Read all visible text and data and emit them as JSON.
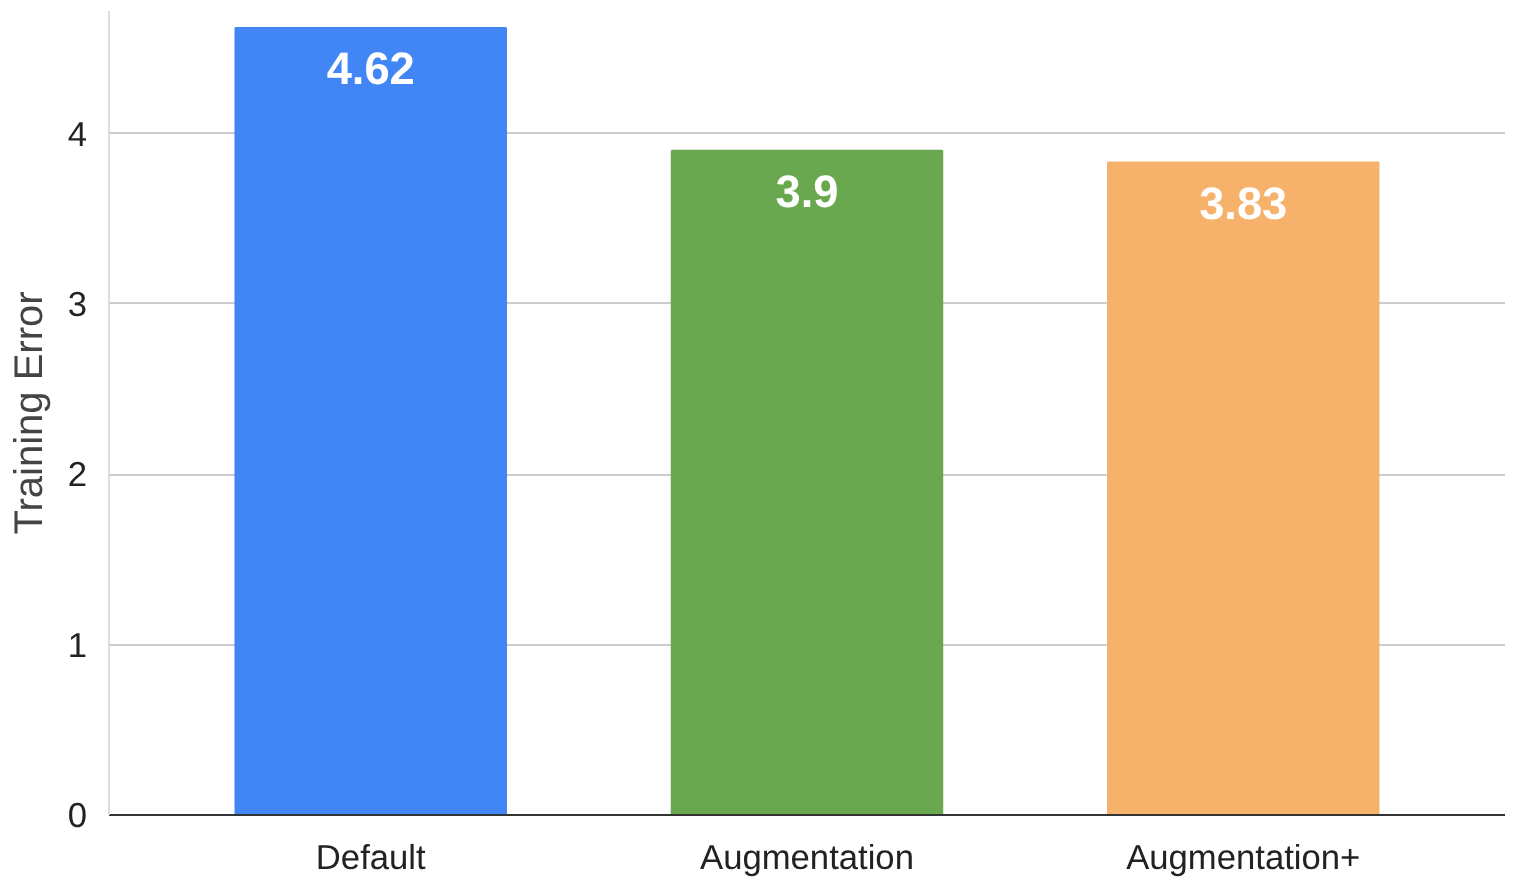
{
  "chart_data": {
    "type": "bar",
    "ylabel": "Training Error",
    "categories": [
      "Default",
      "Augmentation",
      "Augmentation+"
    ],
    "values": [
      4.62,
      3.9,
      3.83
    ],
    "colors": [
      "#4285f4",
      "#6aa84f",
      "#f6b26b"
    ],
    "ylim": [
      0,
      4.72
    ],
    "yticks": [
      0,
      1,
      2,
      3,
      4
    ],
    "grid": "y",
    "data_labels": true
  }
}
